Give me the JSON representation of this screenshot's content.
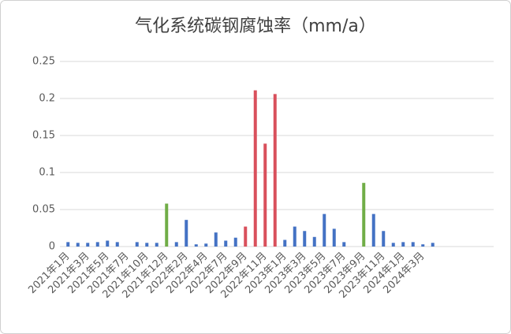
{
  "chart_data": {
    "type": "bar",
    "title": "气化系统碳钢腐蚀率（mm/a）",
    "categories": [
      "2021年1月",
      null,
      "2021年3月",
      null,
      "2021年5月",
      null,
      "2021年7月",
      null,
      "2021年10月",
      null,
      "2021年12月",
      null,
      "2022年2月",
      null,
      "2022年4月",
      null,
      "2022年7月",
      null,
      "2022年9月",
      null,
      "2022年11月",
      null,
      "2023年1月",
      null,
      "2023年3月",
      null,
      "2023年5月",
      null,
      "2023年7月",
      null,
      "2023年9月",
      null,
      "2023年11月",
      null,
      "2024年1月",
      null,
      "2024年3月",
      null,
      null,
      null,
      null,
      null,
      null,
      null
    ],
    "values": [
      0.006,
      0.005,
      0.005,
      0.006,
      0.008,
      0.006,
      null,
      0.006,
      0.005,
      0.005,
      0.058,
      0.006,
      0.036,
      0.003,
      0.004,
      0.019,
      0.008,
      0.012,
      0.027,
      0.211,
      0.139,
      0.206,
      0.009,
      0.027,
      0.021,
      0.013,
      0.044,
      0.024,
      0.006,
      null,
      0.086,
      0.044,
      0.021,
      0.005,
      0.006,
      0.006,
      0.003,
      0.005,
      null,
      null,
      null,
      null,
      null,
      null
    ],
    "colors": [
      "#4472c4",
      "#4472c4",
      "#4472c4",
      "#4472c4",
      "#4472c4",
      "#4472c4",
      "#4472c4",
      "#4472c4",
      "#4472c4",
      "#4472c4",
      "#70ad47",
      "#4472c4",
      "#4472c4",
      "#4472c4",
      "#4472c4",
      "#4472c4",
      "#4472c4",
      "#4472c4",
      "#d9505c",
      "#d9505c",
      "#d9505c",
      "#d9505c",
      "#4472c4",
      "#4472c4",
      "#4472c4",
      "#4472c4",
      "#4472c4",
      "#4472c4",
      "#4472c4",
      "#4472c4",
      "#70ad47",
      "#4472c4",
      "#4472c4",
      "#4472c4",
      "#4472c4",
      "#4472c4",
      "#4472c4",
      "#4472c4",
      "#4472c4",
      "#4472c4",
      "#4472c4",
      "#4472c4",
      "#4472c4",
      "#4472c4"
    ],
    "ylim": [
      0,
      0.25
    ],
    "yticks": [
      0,
      0.05,
      0.1,
      0.15,
      0.2,
      0.25
    ],
    "grid": true
  }
}
